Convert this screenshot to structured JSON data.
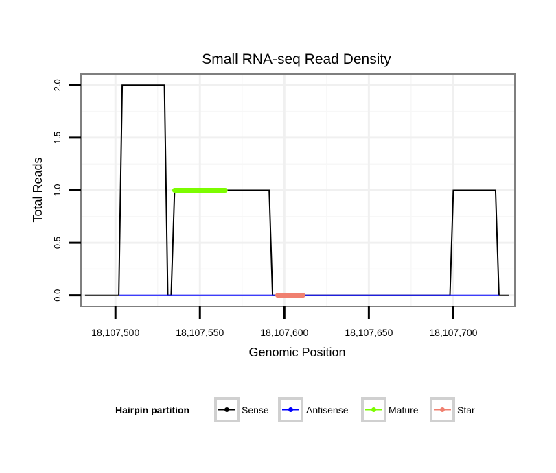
{
  "chart_data": {
    "type": "line",
    "title": "Small RNA-seq Read Density",
    "xlabel": "Genomic Position",
    "ylabel": "Total Reads",
    "xlim": [
      18107480,
      18107736
    ],
    "ylim": [
      -0.1,
      2.1
    ],
    "xticks": [
      18107500,
      18107550,
      18107600,
      18107650,
      18107700
    ],
    "xtick_labels": [
      "18,107,500",
      "18,107,550",
      "18,107,600",
      "18,107,650",
      "18,107,700"
    ],
    "yticks": [
      0,
      0.5,
      1,
      1.5,
      2
    ],
    "ytick_labels": [
      "0.0",
      "0.5",
      "1.0",
      "1.5",
      "2.0"
    ],
    "grid": true,
    "legend_position": "bottom",
    "legend_title": "Hairpin partition",
    "series": [
      {
        "name": "Sense",
        "color": "#000000",
        "x": [
          18107482,
          18107502,
          18107504,
          18107529,
          18107531,
          18107533,
          18107535,
          18107591,
          18107593,
          18107698,
          18107700,
          18107725,
          18107727,
          18107733
        ],
        "y": [
          0,
          0,
          2,
          2,
          0,
          0,
          1,
          1,
          0,
          0,
          1,
          1,
          0,
          0
        ]
      },
      {
        "name": "Antisense",
        "color": "#0000ff",
        "x": [
          18107502,
          18107727
        ],
        "y": [
          0,
          0
        ]
      },
      {
        "name": "Mature",
        "color": "#7cfc00",
        "x": [
          18107535,
          18107565
        ],
        "y": [
          1,
          1
        ]
      },
      {
        "name": "Star",
        "color": "#f08070",
        "x": [
          18107596,
          18107611
        ],
        "y": [
          0,
          0
        ]
      }
    ]
  }
}
